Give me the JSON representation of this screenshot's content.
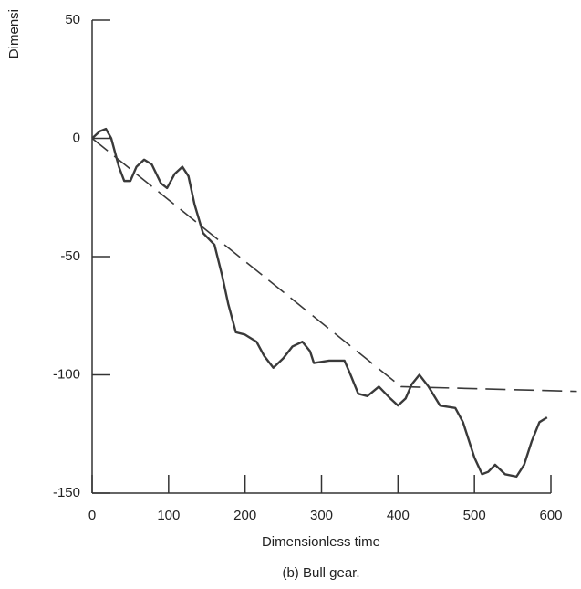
{
  "chart_data": {
    "type": "line",
    "y_label": "Dimensi",
    "x_label": "Dimensionless time",
    "caption": "(b) Bull gear.",
    "xlim": [
      0,
      600
    ],
    "xticks": [
      0,
      100,
      200,
      300,
      400,
      500,
      600
    ],
    "ylim": [
      -150,
      50
    ],
    "yticks": [
      50,
      0,
      -50,
      -100,
      -150
    ],
    "series": [
      {
        "color": "#3a3a3a",
        "dash": false,
        "x": [
          0,
          10,
          18,
          25,
          35,
          42,
          50,
          58,
          68,
          78,
          90,
          98,
          108,
          118,
          126,
          134,
          145,
          160,
          170,
          178,
          188,
          200,
          215,
          225,
          237,
          250,
          262,
          275,
          285,
          290,
          310,
          330,
          338,
          348,
          360,
          375,
          390,
          400,
          410,
          418,
          428,
          440,
          455,
          475,
          485,
          500,
          510,
          518,
          527,
          540,
          555,
          565,
          575,
          585,
          595
        ],
        "values": [
          0,
          3,
          4,
          0,
          -12,
          -18,
          -18,
          -12,
          -9,
          -11,
          -19,
          -21,
          -15,
          -12,
          -16,
          -28,
          -40,
          -45,
          -58,
          -70,
          -82,
          -83,
          -86,
          -92,
          -97,
          -93,
          -88,
          -86,
          -90,
          -95,
          -94,
          -94,
          -100,
          -108,
          -109,
          -105,
          -110,
          -113,
          -110,
          -104,
          -100,
          -105,
          -113,
          -114,
          -120,
          -135,
          -142,
          -141,
          -138,
          -142,
          -143,
          -138,
          -128,
          -120,
          -118
        ]
      },
      {
        "color": "#3a3a3a",
        "dash": true,
        "x": [
          0,
          404,
          634
        ],
        "values": [
          0,
          -105,
          -107
        ]
      }
    ]
  }
}
